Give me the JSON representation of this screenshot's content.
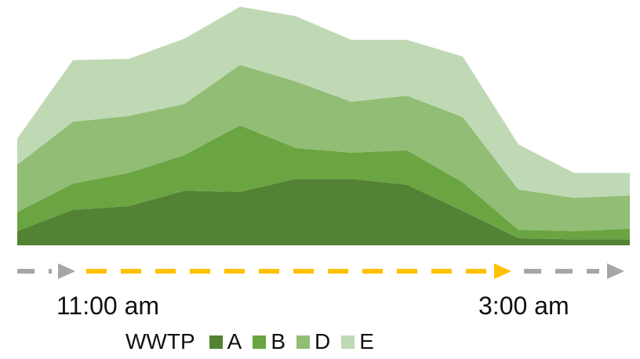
{
  "chart_data": {
    "type": "area",
    "stacked": true,
    "x": [
      0,
      1,
      2,
      3,
      4,
      5,
      6,
      7,
      8,
      9,
      10,
      11
    ],
    "ylim": [
      0,
      100
    ],
    "series": [
      {
        "name": "A",
        "color": "#548235",
        "values": [
          6,
          15,
          16.5,
          23,
          22.5,
          28,
          28,
          25.5,
          14.5,
          3,
          2.5,
          2.5
        ]
      },
      {
        "name": "B",
        "color": "#6aa541",
        "values": [
          8,
          11,
          14,
          15,
          28,
          13,
          11,
          14.5,
          12,
          3.5,
          3.5,
          4.5
        ]
      },
      {
        "name": "D",
        "color": "#91bd74",
        "values": [
          20,
          26,
          24,
          21.5,
          25.5,
          28,
          21.5,
          23,
          27.5,
          17,
          14,
          14
        ]
      },
      {
        "name": "E",
        "color": "#c0d9b5",
        "values": [
          11,
          26,
          24,
          27.5,
          24.5,
          27.5,
          26,
          23.5,
          25.5,
          19,
          10.5,
          9.5
        ]
      }
    ]
  },
  "timeline": {
    "start_label": "11:00 am",
    "end_label": "3:00 am",
    "gray_color": "#a6a6a6",
    "highlight_color": "#ffc000"
  },
  "legend": {
    "title": "WWTP",
    "items": [
      {
        "label": "A",
        "color": "#548235"
      },
      {
        "label": "B",
        "color": "#6aa541"
      },
      {
        "label": "D",
        "color": "#91bd74"
      },
      {
        "label": "E",
        "color": "#c0d9b5"
      }
    ]
  }
}
